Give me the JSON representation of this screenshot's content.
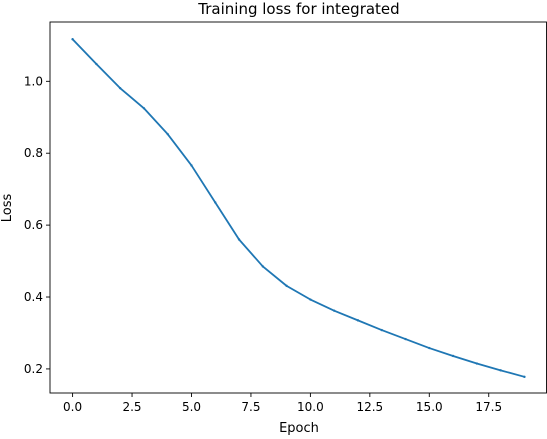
{
  "chart_data": {
    "type": "line",
    "title": "Training loss for integrated",
    "xlabel": "Epoch",
    "ylabel": "Loss",
    "xlim": [
      -0.95,
      19.95
    ],
    "ylim": [
      0.133,
      1.165
    ],
    "x_ticks": [
      0,
      2.5,
      5,
      7.5,
      10,
      12.5,
      15,
      17.5
    ],
    "x_tick_labels": [
      "0.0",
      "2.5",
      "5.0",
      "7.5",
      "10.0",
      "12.5",
      "15.0",
      "17.5"
    ],
    "y_ticks": [
      0.2,
      0.4,
      0.6,
      0.8,
      1.0
    ],
    "y_tick_labels": [
      "0.2",
      "0.4",
      "0.6",
      "0.8",
      "1.0"
    ],
    "grid": false,
    "legend": "none",
    "series": [
      {
        "color": "#1f77b4",
        "x": [
          0,
          1,
          2,
          3,
          4,
          5,
          6,
          7,
          8,
          9,
          10,
          11,
          12,
          13,
          14,
          15,
          16,
          17,
          18,
          19
        ],
        "values": [
          1.117,
          1.048,
          0.981,
          0.925,
          0.853,
          0.766,
          0.663,
          0.56,
          0.485,
          0.431,
          0.393,
          0.362,
          0.335,
          0.308,
          0.283,
          0.258,
          0.236,
          0.215,
          0.196,
          0.178
        ]
      }
    ]
  }
}
